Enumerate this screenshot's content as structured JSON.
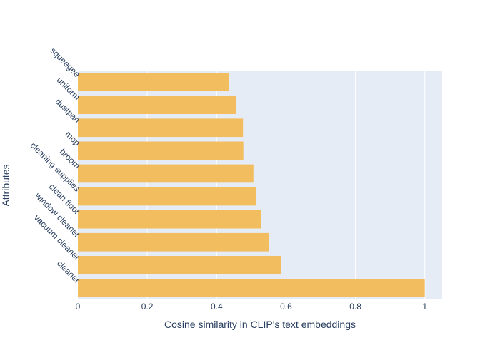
{
  "chart_data": {
    "type": "bar",
    "orientation": "horizontal",
    "title": "",
    "xlabel": "Cosine similarity in CLIP's text embeddings",
    "ylabel": "Attributes",
    "xlim": [
      0,
      1.05
    ],
    "xticks": [
      0,
      0.2,
      0.4,
      0.6,
      0.8,
      1
    ],
    "x_tick_labels": [
      "0",
      "0.2",
      "0.4",
      "0.6",
      "0.8",
      "1"
    ],
    "grid": true,
    "legend": "none",
    "bar_color": "#f2bd5e",
    "plot_background": "#e5ecf6",
    "categories": [
      "cleaner",
      "vacuum cleaner",
      "window cleaner",
      "clean floor",
      "cleaning supplies",
      "broom",
      "mop",
      "dustpan",
      "uniform",
      "squeegee"
    ],
    "values": [
      1.0,
      0.586,
      0.55,
      0.529,
      0.514,
      0.506,
      0.477,
      0.476,
      0.456,
      0.436
    ]
  }
}
